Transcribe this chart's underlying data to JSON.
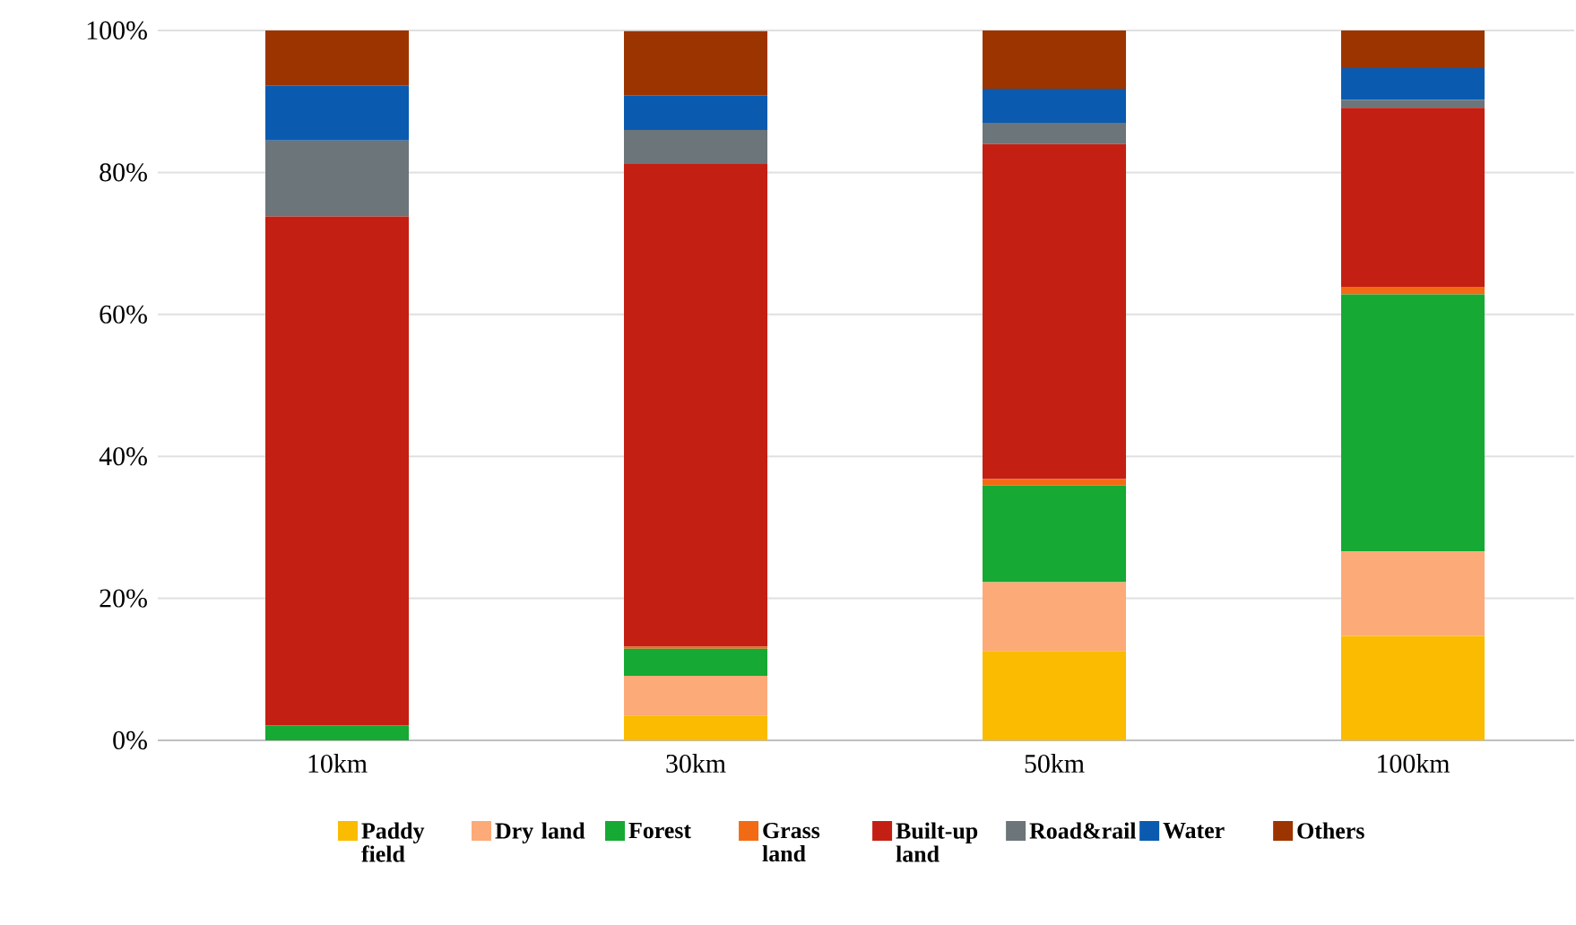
{
  "chart_data": {
    "type": "bar",
    "stacked": true,
    "categories": [
      "10km",
      "30km",
      "50km",
      "100km"
    ],
    "series": [
      {
        "name": "Paddy field",
        "color": "#fbbb00",
        "values": [
          0,
          3.5,
          12.6,
          14.7
        ]
      },
      {
        "name": "Dry land",
        "color": "#fcaa78",
        "values": [
          0,
          5.6,
          9.7,
          11.9
        ]
      },
      {
        "name": "Forest",
        "color": "#16a934",
        "values": [
          2.1,
          3.8,
          13.6,
          36.2
        ]
      },
      {
        "name": "Grass land",
        "color": "#f26b14",
        "values": [
          0,
          0.3,
          0.9,
          1.1
        ]
      },
      {
        "name": "Built-up land",
        "color": "#c32013",
        "values": [
          71.7,
          68.0,
          47.2,
          25.2
        ]
      },
      {
        "name": "Road&rail",
        "color": "#6c7579",
        "values": [
          10.7,
          4.8,
          3.0,
          1.1
        ]
      },
      {
        "name": "Water",
        "color": "#0a5bb0",
        "values": [
          7.7,
          4.8,
          4.8,
          4.5
        ]
      },
      {
        "name": "Others",
        "color": "#9c3400",
        "values": [
          7.8,
          9.1,
          8.2,
          5.3
        ]
      }
    ],
    "ylim": [
      0,
      100
    ],
    "yticks": [
      {
        "value": 0,
        "label": "0%"
      },
      {
        "value": 20,
        "label": "20%"
      },
      {
        "value": 40,
        "label": "40%"
      },
      {
        "value": 60,
        "label": "60%"
      },
      {
        "value": 80,
        "label": "80%"
      },
      {
        "value": 100,
        "label": "100%"
      }
    ],
    "grid": "y",
    "legend": "bottom"
  }
}
